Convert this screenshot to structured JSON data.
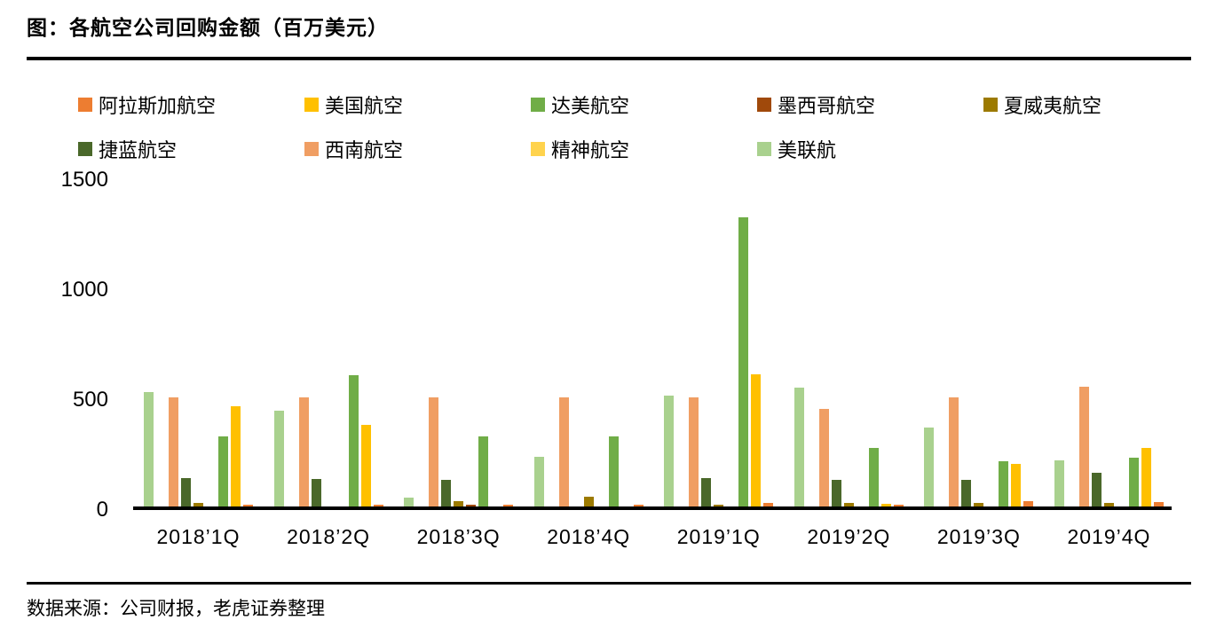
{
  "page": {
    "title": "图：各航空公司回购金额（百万美元）",
    "source_note": "数据来源：公司财报，老虎证券整理"
  },
  "chart_data": {
    "type": "bar",
    "title": "图：各航空公司回购金额（百万美元）",
    "unit": "百万美元",
    "categories": [
      "2018’1Q",
      "2018’2Q",
      "2018’3Q",
      "2018’4Q",
      "2019’1Q",
      "2019’2Q",
      "2019’3Q",
      "2019’4Q"
    ],
    "series": [
      {
        "key": "alaska",
        "name": "阿拉斯加航空",
        "color": "#ED7D31",
        "values": [
          10,
          10,
          8,
          10,
          15,
          10,
          25,
          20
        ]
      },
      {
        "key": "american",
        "name": "美国航空",
        "color": "#FFC000",
        "values": [
          455,
          370,
          0,
          0,
          600,
          12,
          195,
          265
        ]
      },
      {
        "key": "delta",
        "name": "达美航空",
        "color": "#70AD47",
        "values": [
          320,
          595,
          320,
          320,
          1315,
          265,
          205,
          220
        ]
      },
      {
        "key": "aeromexico",
        "name": "墨西哥航空",
        "color": "#A0490B",
        "values": [
          0,
          0,
          8,
          0,
          0,
          0,
          0,
          0
        ]
      },
      {
        "key": "hawaiian",
        "name": "夏威夷航空",
        "color": "#9C7A00",
        "values": [
          18,
          0,
          25,
          45,
          8,
          18,
          18,
          15
        ]
      },
      {
        "key": "jetblue",
        "name": "捷蓝航空",
        "color": "#4A682A",
        "values": [
          130,
          125,
          120,
          0,
          130,
          120,
          120,
          155
        ]
      },
      {
        "key": "southwest",
        "name": "西南航空",
        "color": "#F09E63",
        "values": [
          495,
          495,
          495,
          495,
          495,
          445,
          495,
          545
        ]
      },
      {
        "key": "spirit",
        "name": "精神航空",
        "color": "#FFD34D",
        "values": [
          0,
          0,
          0,
          0,
          0,
          0,
          0,
          0
        ]
      },
      {
        "key": "united",
        "name": "美联航",
        "color": "#A9D18E",
        "values": [
          520,
          435,
          40,
          225,
          505,
          540,
          360,
          210
        ]
      }
    ],
    "bar_draw_order": "reverse_of_legend",
    "ylim": [
      0,
      1500
    ],
    "yticks": [
      0,
      500,
      1000,
      1500
    ],
    "legend_position": "top",
    "grid": false,
    "axis_color": "#000000",
    "background_color": "#FFFFFF"
  }
}
